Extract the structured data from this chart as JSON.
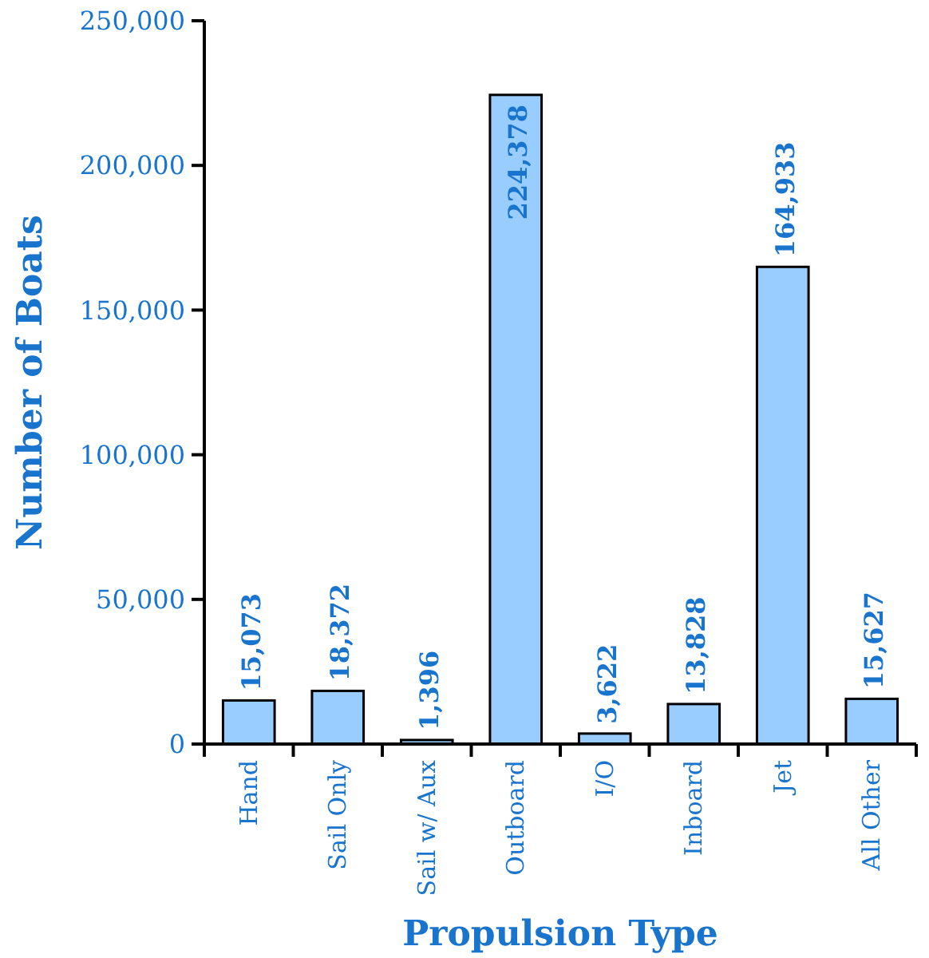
{
  "chart_data": {
    "type": "bar",
    "xlabel": "Propulsion Type",
    "ylabel": "Number of Boats",
    "categories": [
      "Hand",
      "Sail Only",
      "Sail w/ Aux",
      "Outboard",
      "I/O",
      "Inboard",
      "Jet",
      "All Other"
    ],
    "values": [
      15073,
      18372,
      1396,
      224378,
      3622,
      13828,
      164933,
      15627
    ],
    "color": "#99ccff",
    "ylim": [
      0,
      250000
    ],
    "yticks": [
      {
        "value": 0,
        "label": "0"
      },
      {
        "value": 50000,
        "label": "50,000"
      },
      {
        "value": 100000,
        "label": "100,000"
      },
      {
        "value": 150000,
        "label": "150,000"
      },
      {
        "value": 200000,
        "label": "200,000"
      },
      {
        "value": 250000,
        "label": "250,000"
      }
    ],
    "value_labels": [
      "15,073",
      "18,372",
      "1,396",
      "224,378",
      "3,622",
      "13,828",
      "164,933",
      "15,627"
    ]
  }
}
